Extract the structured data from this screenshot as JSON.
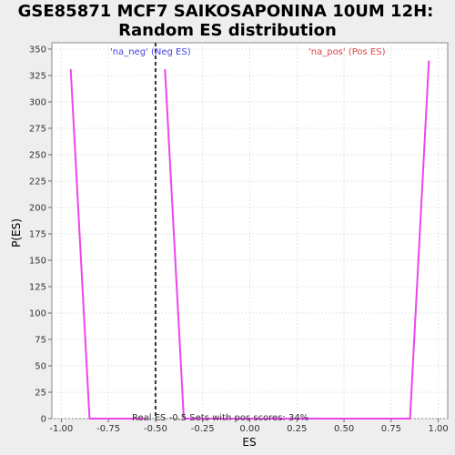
{
  "chart_data": {
    "type": "line",
    "title_line1": "GSE85871 MCF7 SAIKOSAPONINA 10UM 12H:",
    "title_line2": "Random ES distribution",
    "xlabel": "ES",
    "ylabel": "P(ES)",
    "xlim": [
      -1.05,
      1.05
    ],
    "ylim": [
      0,
      356
    ],
    "x_ticks": [
      -1.0,
      -0.75,
      -0.5,
      -0.25,
      0.0,
      0.25,
      0.5,
      0.75,
      1.0
    ],
    "x_tick_labels": [
      "-1.00",
      "-0.75",
      "-0.50",
      "-0.25",
      "0.00",
      "0.25",
      "0.50",
      "0.75",
      "1.00"
    ],
    "y_ticks": [
      0,
      25,
      50,
      75,
      100,
      125,
      150,
      175,
      200,
      225,
      250,
      275,
      300,
      325,
      350
    ],
    "y_tick_labels": [
      "0",
      "25",
      "50",
      "75",
      "100",
      "125",
      "150",
      "175",
      "200",
      "225",
      "250",
      "275",
      "300",
      "325",
      "350"
    ],
    "grid": true,
    "series": [
      {
        "color": "#ee44ee",
        "segments": [
          {
            "x": [
              -0.95,
              -0.85,
              -0.55
            ],
            "y": [
              331,
              0,
              0
            ]
          },
          {
            "x": [
              -0.45,
              -0.35
            ],
            "y": [
              331,
              0
            ]
          },
          {
            "x": [
              -0.35,
              0.85,
              0.95
            ],
            "y": [
              0,
              0,
              339
            ]
          }
        ]
      }
    ],
    "vline": {
      "x": -0.5,
      "color": "#333333",
      "dashed": true
    },
    "legend": [
      {
        "text": "'na_neg' (Neg ES)",
        "color": "#4444dd",
        "position": "top-left"
      },
      {
        "text": "'na_pos' (Pos ES)",
        "color": "#dd4444",
        "position": "top-right"
      }
    ],
    "annotation": "Real ES -0.5 Sets with pos scores: 34%"
  }
}
